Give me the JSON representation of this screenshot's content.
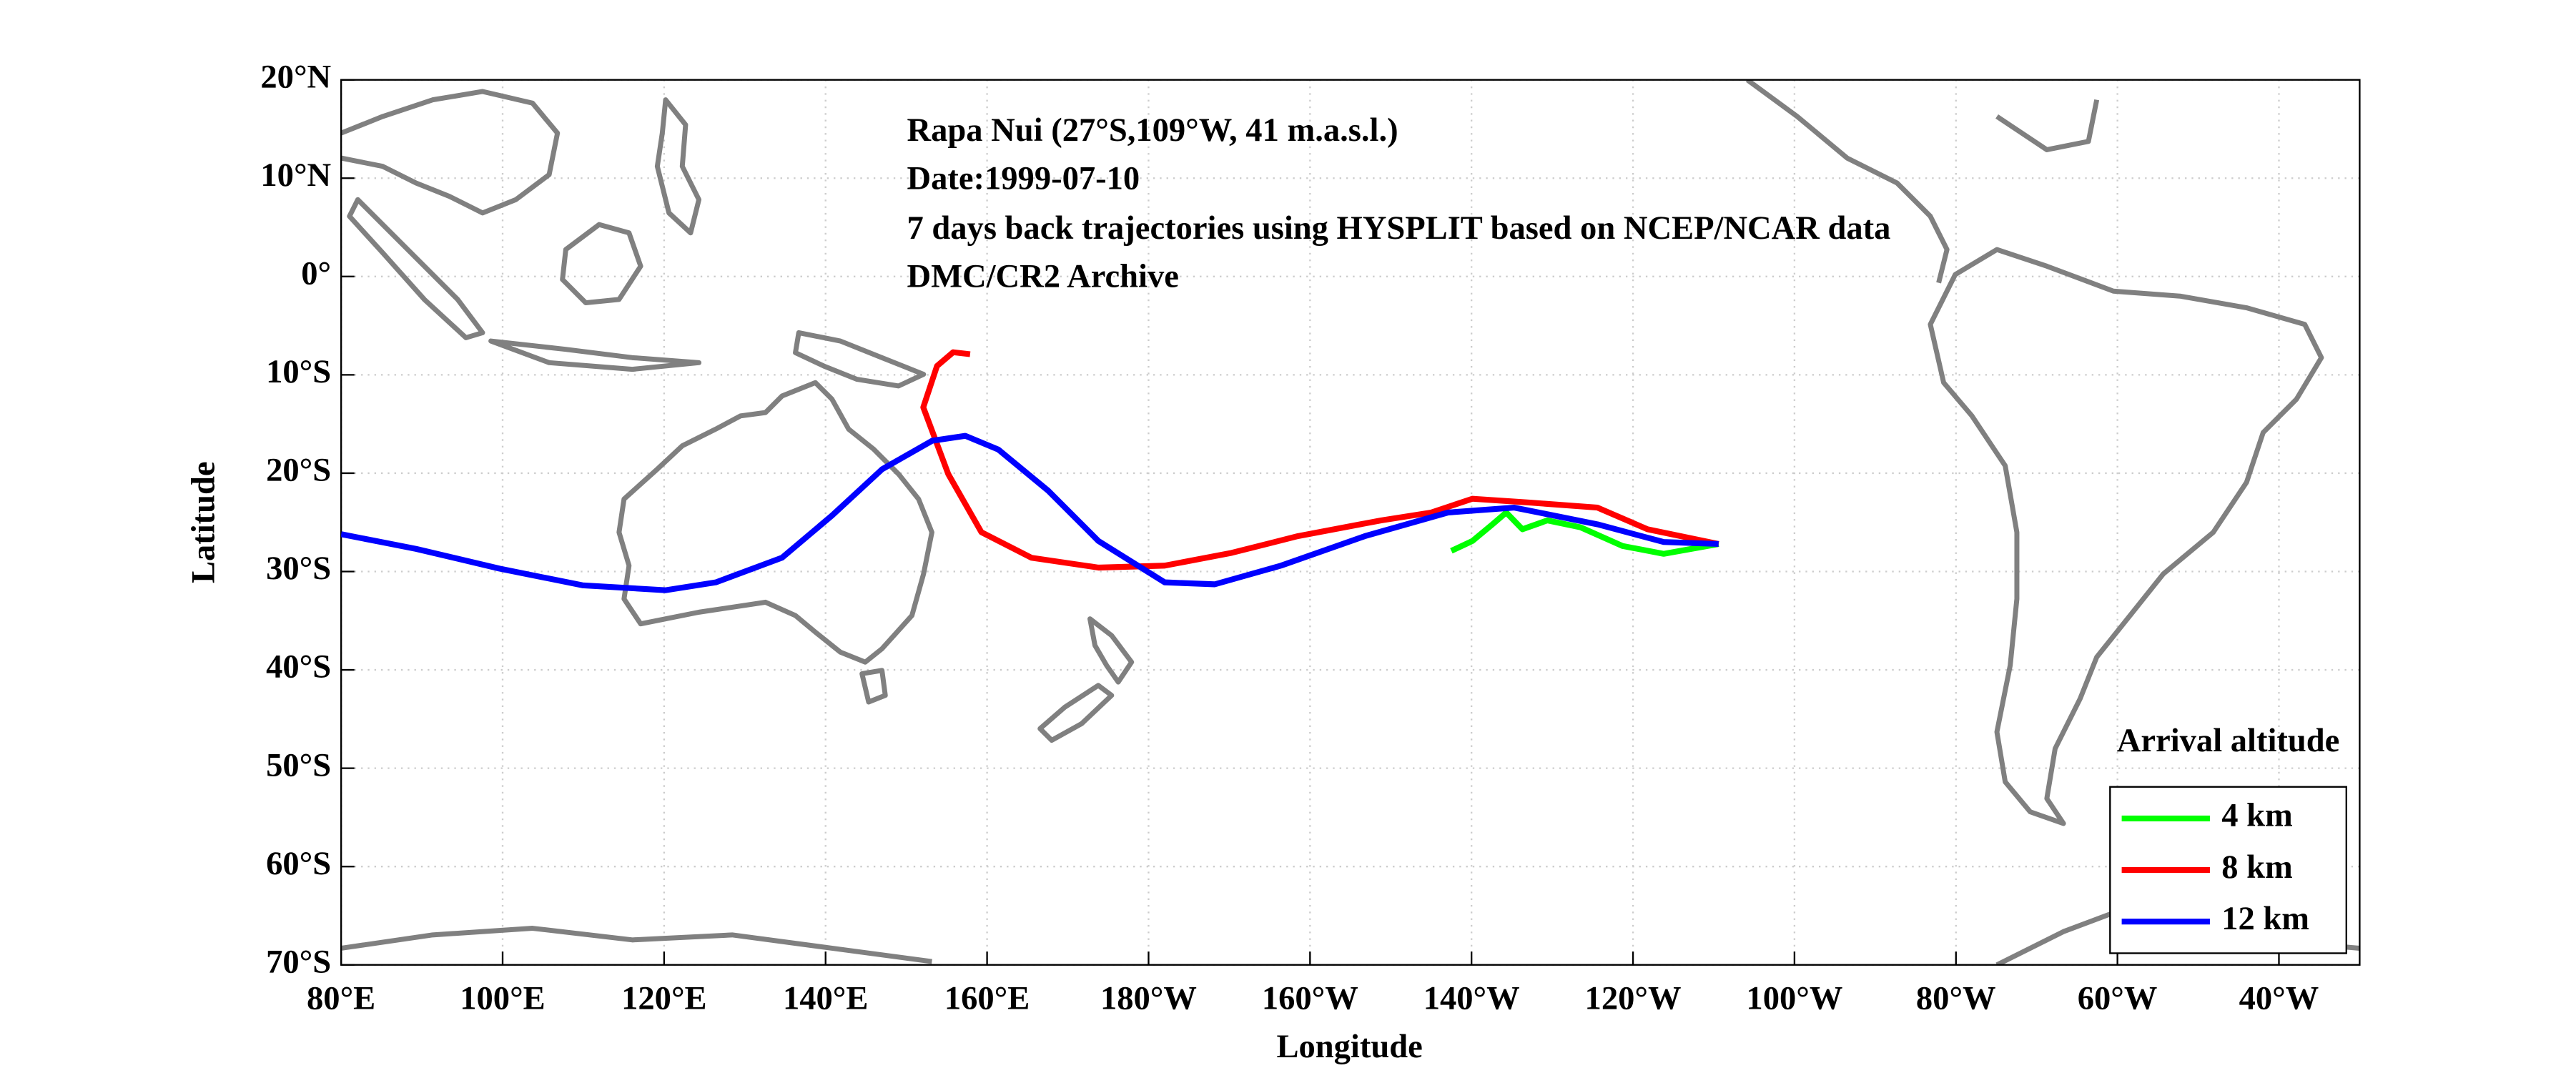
{
  "chart_data": {
    "type": "line",
    "annotations": [
      "Rapa Nui (27°S,109°W, 41 m.a.s.l.)",
      "Date:1999-07-10",
      "7 days back trajectories using HYSPLIT based on NCEP/NCAR data",
      "DMC/CR2 Archive"
    ],
    "x_label": "Longitude",
    "y_label": "Latitude",
    "legend_title": "Arrival altitude",
    "legend": "lower right",
    "grid": true,
    "xlim": [
      80,
      330
    ],
    "ylim": [
      -70,
      20
    ],
    "xticks": [
      {
        "value": 80,
        "label": "80°E"
      },
      {
        "value": 100,
        "label": "100°E"
      },
      {
        "value": 120,
        "label": "120°E"
      },
      {
        "value": 140,
        "label": "140°E"
      },
      {
        "value": 160,
        "label": "160°E"
      },
      {
        "value": 180,
        "label": "180°W"
      },
      {
        "value": 200,
        "label": "160°W"
      },
      {
        "value": 220,
        "label": "140°W"
      },
      {
        "value": 240,
        "label": "120°W"
      },
      {
        "value": 260,
        "label": "100°W"
      },
      {
        "value": 280,
        "label": "80°W"
      },
      {
        "value": 300,
        "label": "60°W"
      },
      {
        "value": 320,
        "label": "40°W"
      }
    ],
    "yticks": [
      {
        "value": 20,
        "label": "20°N"
      },
      {
        "value": 10,
        "label": "10°N"
      },
      {
        "value": 0,
        "label": "0°"
      },
      {
        "value": -10,
        "label": "10°S"
      },
      {
        "value": -20,
        "label": "20°S"
      },
      {
        "value": -30,
        "label": "30°S"
      },
      {
        "value": -40,
        "label": "40°S"
      },
      {
        "value": -50,
        "label": "50°S"
      },
      {
        "value": -60,
        "label": "60°S"
      },
      {
        "value": -70,
        "label": "70°S"
      }
    ],
    "series": [
      {
        "name": "4 km",
        "color": "#00ff00",
        "x": [
          250.6,
          243.8,
          238.7,
          233.5,
          229.4,
          226.3,
          224.3,
          222.6,
          220.1,
          217.5
        ],
        "values": [
          -27.2,
          -28.2,
          -27.4,
          -25.5,
          -24.8,
          -25.7,
          -24.0,
          -25.2,
          -26.9,
          -27.9
        ]
      },
      {
        "name": "8 km",
        "color": "#ff0000",
        "x": [
          250.6,
          241.8,
          235.6,
          227.4,
          220.1,
          215.0,
          208.8,
          198.5,
          190.3,
          182.0,
          173.8,
          165.5,
          159.3,
          155.2,
          152.1,
          153.8,
          155.8,
          157.9
        ],
        "values": [
          -27.2,
          -25.7,
          -23.5,
          -23.0,
          -22.6,
          -24.0,
          -24.8,
          -26.4,
          -28.1,
          -29.4,
          -29.6,
          -28.6,
          -26.0,
          -20.1,
          -13.3,
          -9.1,
          -7.7,
          -7.9
        ]
      },
      {
        "name": "12 km",
        "color": "#0000ff",
        "x": [
          250.6,
          243.8,
          235.6,
          225.3,
          217.1,
          206.8,
          196.4,
          188.2,
          182.0,
          173.8,
          167.6,
          161.4,
          157.3,
          153.2,
          147.0,
          140.8,
          134.6,
          126.4,
          120.2,
          109.9,
          99.6,
          89.3,
          80
        ],
        "values": [
          -27.2,
          -27.0,
          -25.2,
          -23.5,
          -24.0,
          -26.4,
          -29.4,
          -31.3,
          -31.1,
          -26.9,
          -21.8,
          -17.6,
          -16.2,
          -16.7,
          -19.6,
          -24.3,
          -28.6,
          -31.1,
          -31.9,
          -31.4,
          -29.7,
          -27.7,
          -26.2
        ]
      }
    ]
  }
}
